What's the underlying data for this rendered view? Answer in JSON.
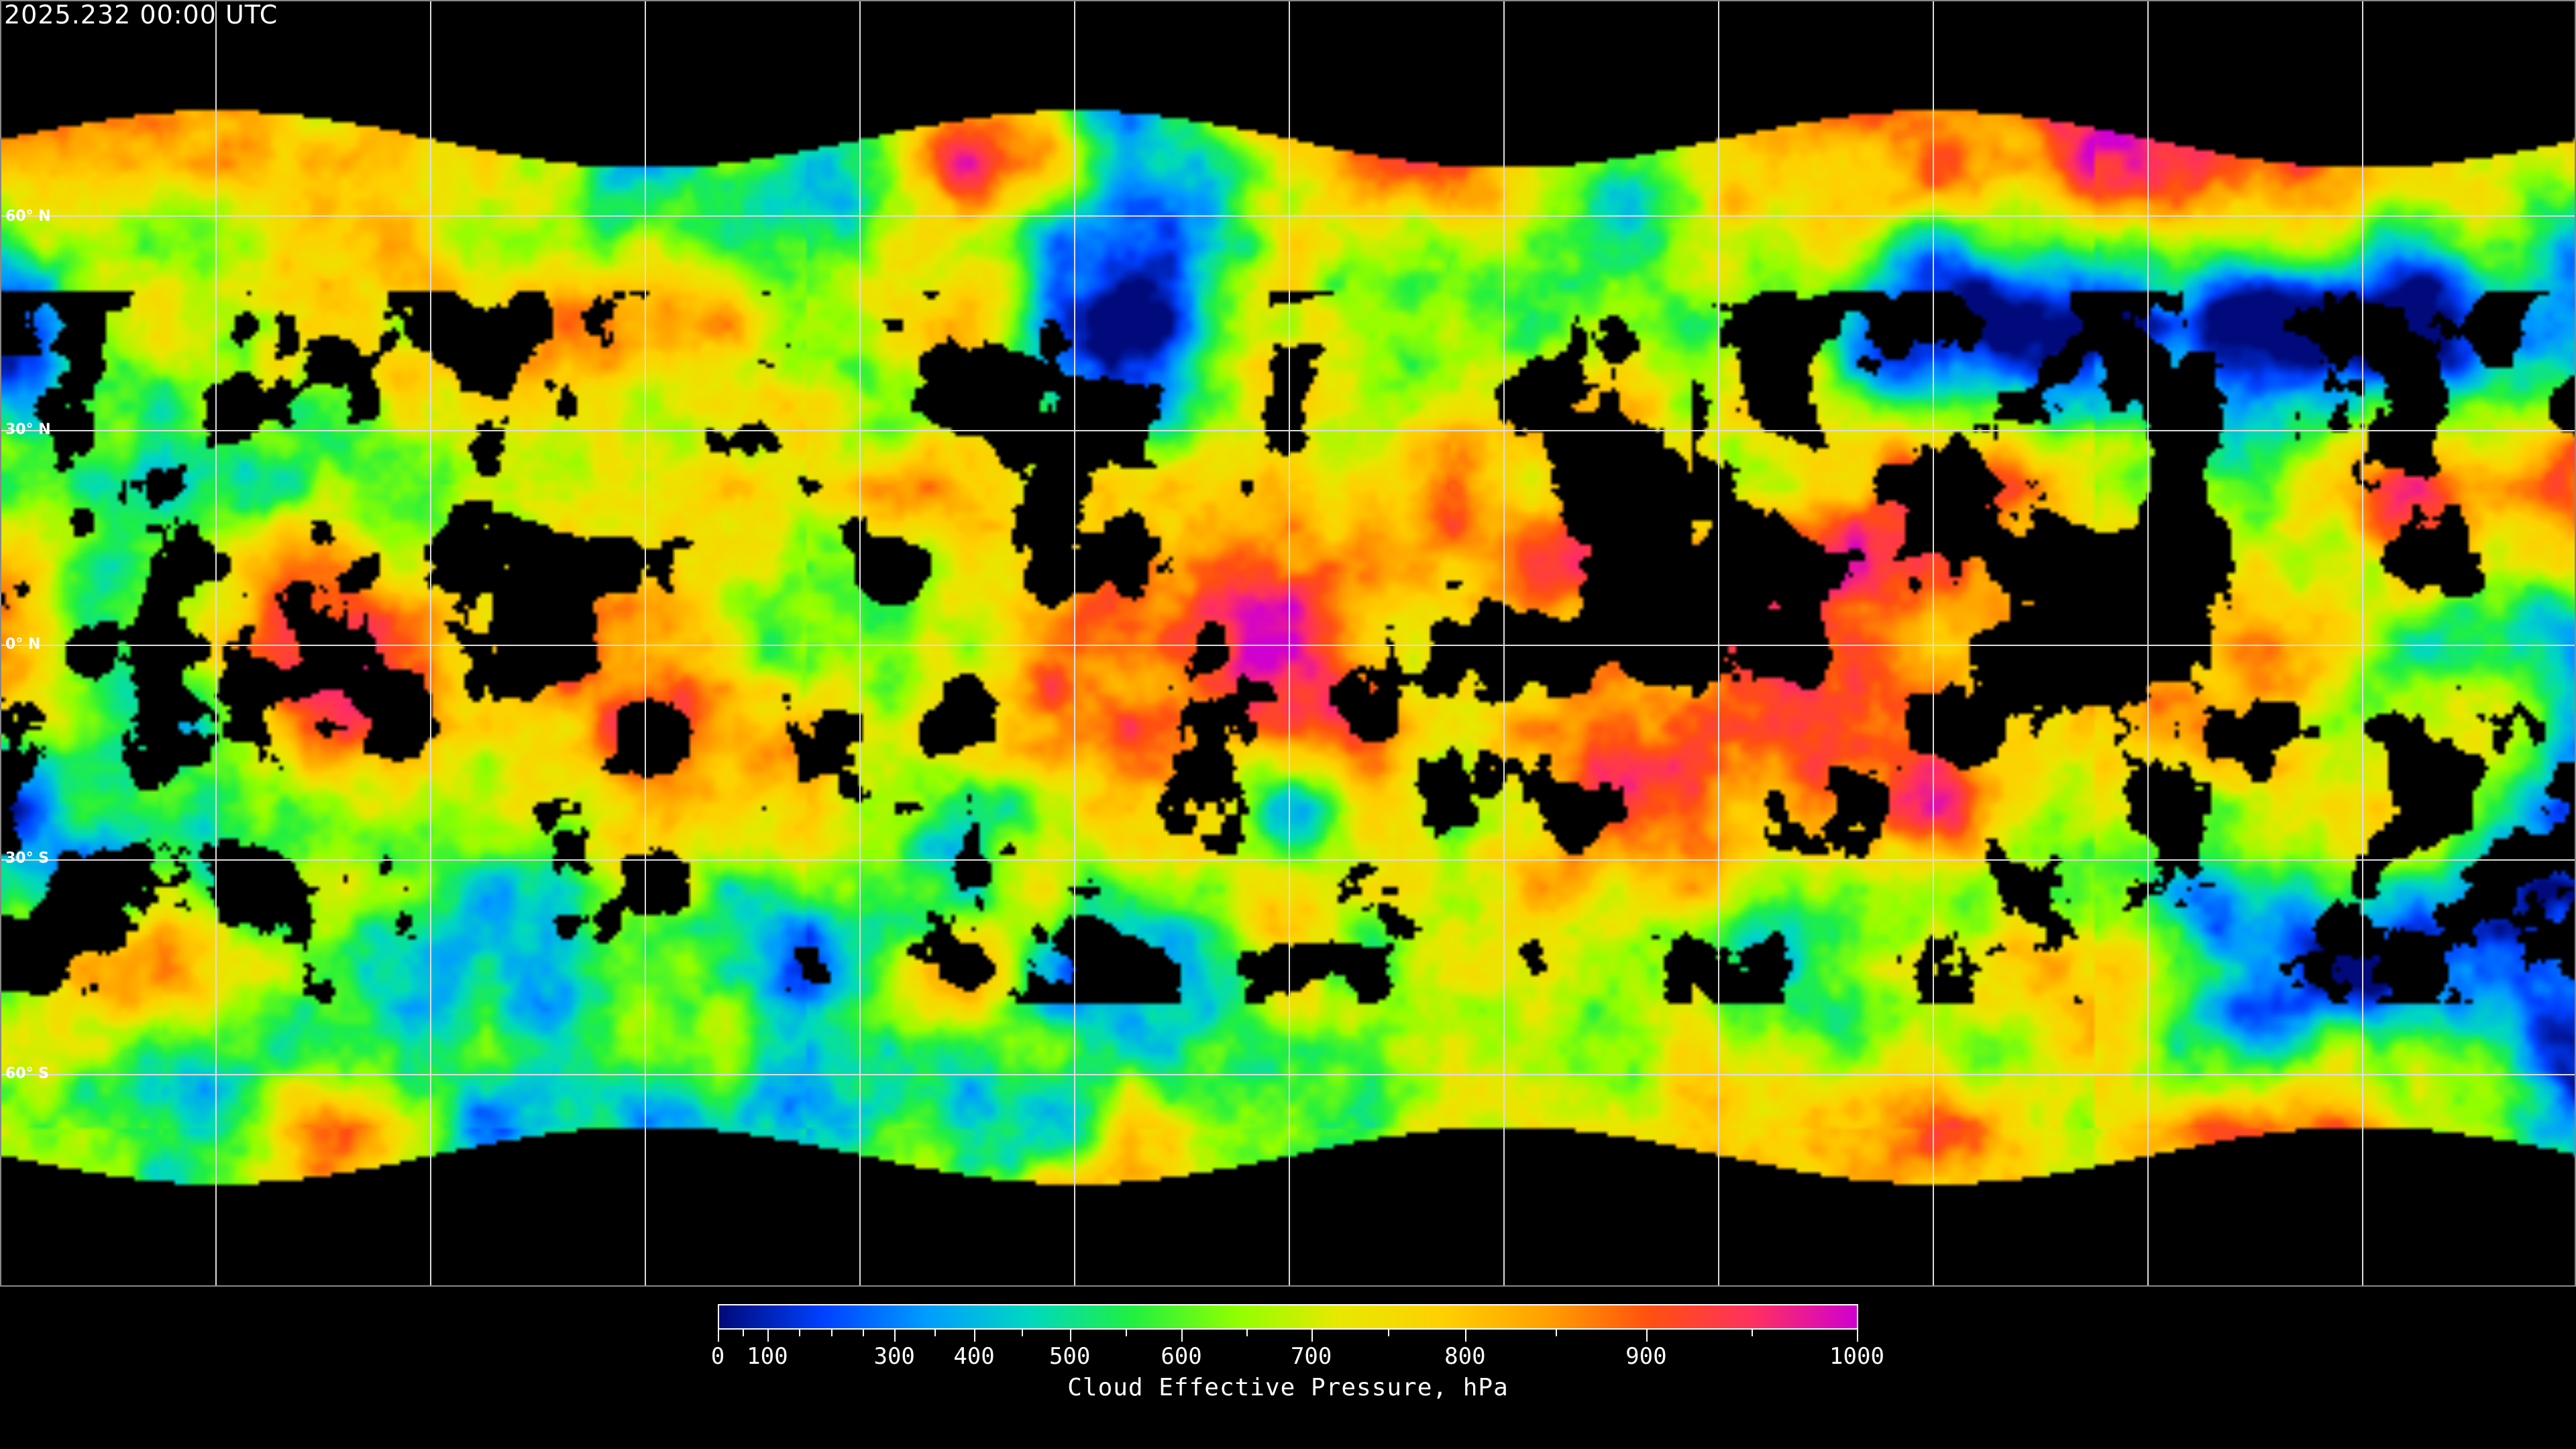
{
  "title": "2025.232 00:00 UTC",
  "map": {
    "lat_labels": [
      "60° N",
      "30° N",
      "0° N",
      "30° S",
      "60° S"
    ],
    "lat_values": [
      60,
      30,
      0,
      -30,
      -60
    ],
    "lon_grid_deg": [
      -150,
      -120,
      -90,
      -60,
      -30,
      0,
      30,
      60,
      90,
      120,
      150
    ],
    "projection": "equirectangular",
    "no_data_color": "#000000"
  },
  "colorbar": {
    "title": "Cloud Effective Pressure, hPa",
    "range": [
      0,
      1000
    ],
    "tick_labels": [
      "0",
      "100",
      "300",
      "400",
      "500",
      "600",
      "700",
      "800",
      "900",
      "1000"
    ],
    "tick_values": [
      0,
      100,
      300,
      400,
      500,
      600,
      700,
      800,
      900,
      1000
    ],
    "minor_tick_values": [
      50,
      150,
      200,
      250,
      350,
      450,
      550,
      650,
      750,
      850,
      950
    ],
    "colors": [
      "#000a7a",
      "#0040ff",
      "#009cff",
      "#00d8c0",
      "#20f040",
      "#90ff00",
      "#e8e800",
      "#ffd000",
      "#ffa000",
      "#ff5010",
      "#ff3060",
      "#d000d0"
    ]
  }
}
